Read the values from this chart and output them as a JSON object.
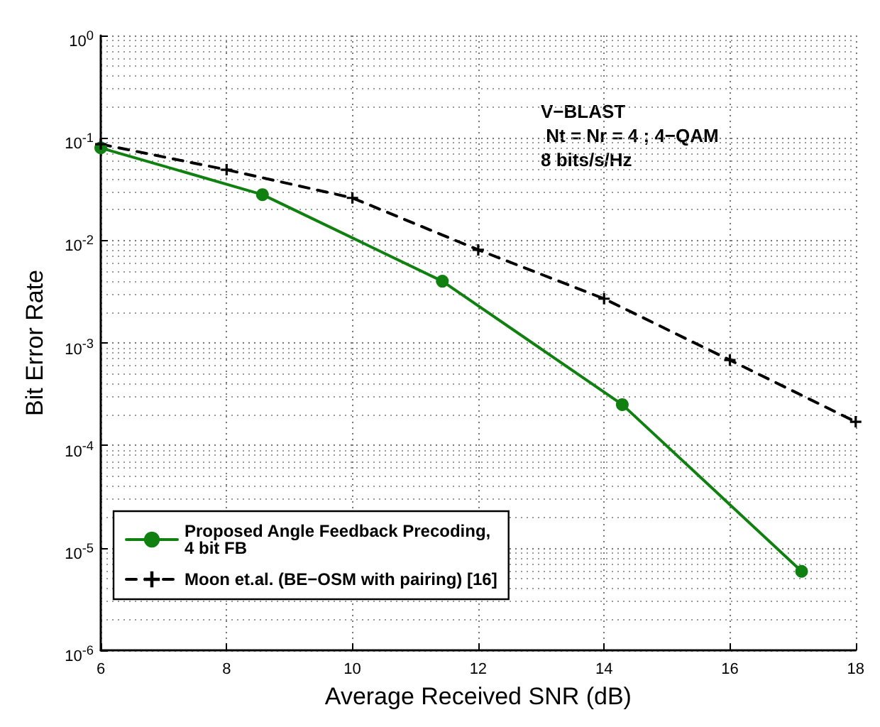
{
  "chart_data": {
    "type": "line",
    "xlabel": "Average Received SNR (dB)",
    "ylabel": "Bit Error Rate",
    "log": "y",
    "grid": true,
    "legend": "bottom left",
    "xlim": [
      6,
      18
    ],
    "xticks": [
      6,
      8,
      10,
      12,
      14,
      16,
      18
    ],
    "ylim": [
      1e-06,
      1
    ],
    "yticks": [
      {
        "value": 1e-06,
        "label": "10$^{-6}$"
      },
      {
        "value": 1e-05,
        "label": "10$^{-5}$"
      },
      {
        "value": 0.0001,
        "label": "10$^{-4}$"
      },
      {
        "value": 0.001,
        "label": "10$^{-3}$"
      },
      {
        "value": 0.01,
        "label": "10$^{-2}$"
      },
      {
        "value": 0.1,
        "label": "10$^{-1}$"
      },
      {
        "value": 1,
        "label": "10$^{0}$"
      }
    ],
    "annotations": [
      "V−BLAST\n Nt = Nr = 4 ; 4−QAM\n8 bits/s/Hz"
    ],
    "series": [
      {
        "name": "Proposed Angle Feedback Precoding,\n4 bit FB",
        "color": "#108010",
        "marker": "circle",
        "line_style": "solid",
        "x": [
          6,
          8.57,
          11.43,
          14.29,
          17.14
        ],
        "values": [
          0.08,
          0.028,
          0.004,
          0.00025,
          5.9e-06
        ]
      },
      {
        "name": "Moon et.al. (BE−OSM with pairing) [16]",
        "color": "#000000",
        "marker": "cross",
        "line_style": "dashed",
        "x": [
          6,
          8,
          10,
          12,
          14,
          16,
          18
        ],
        "values": [
          0.087,
          0.049,
          0.026,
          0.0081,
          0.0027,
          0.00068,
          0.00017
        ]
      }
    ]
  }
}
